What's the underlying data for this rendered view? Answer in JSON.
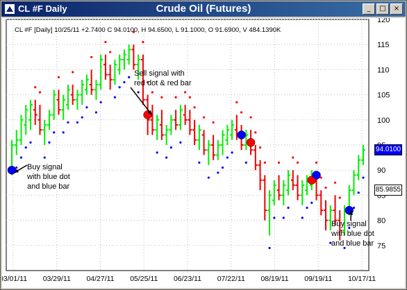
{
  "window": {
    "symbol_title": "CL #F Daily",
    "chart_title": "Crude Oil (Futures)",
    "controls": [
      "_",
      "□",
      "×"
    ]
  },
  "readout": "CL #F [Daily] 10/25/11  +2.7400  C 94.0100, H 94.6500, L 91.1000, O 91.6900, V 484.1390K",
  "price_tags": {
    "last": "94.0100",
    "last_bg": "#0000ff",
    "marker": "85.9855",
    "marker_bg": "#ffffff"
  },
  "annotations": [
    {
      "id": "sell",
      "lines": [
        "Sell signal with",
        "red dot & red bar"
      ]
    },
    {
      "id": "buy1",
      "lines": [
        "Buy signal",
        "with blue dot",
        "and blue bar"
      ]
    },
    {
      "id": "buy2",
      "lines": [
        "Buy signal",
        "with blue dot",
        "and blue bar"
      ]
    }
  ],
  "colors": {
    "bull": "#00ee00",
    "bear": "#ee0000",
    "buy": "#0000ff",
    "sell": "#ff0000"
  },
  "chart_data": {
    "type": "bar",
    "title": "Crude Oil (Futures)",
    "ylim": [
      70,
      120
    ],
    "y_ticks": [
      75,
      80,
      85,
      90,
      95,
      100,
      105,
      110,
      115,
      120
    ],
    "x_ticks": [
      "03/01/11",
      "03/29/11",
      "04/27/11",
      "05/25/11",
      "06/23/11",
      "07/22/11",
      "08/19/11",
      "09/19/11",
      "10/17/11"
    ],
    "grid": true,
    "ohlc": [
      [
        90,
        96,
        89,
        95
      ],
      [
        95,
        98,
        93,
        96
      ],
      [
        96,
        101,
        95,
        100
      ],
      [
        99,
        103,
        97,
        102
      ],
      [
        100,
        104,
        98,
        103
      ],
      [
        102,
        104,
        99,
        101
      ],
      [
        100,
        103,
        97,
        98
      ],
      [
        98,
        100,
        95,
        99
      ],
      [
        99,
        102,
        98,
        101
      ],
      [
        101,
        106,
        100,
        105
      ],
      [
        104,
        106,
        101,
        102
      ],
      [
        102,
        105,
        100,
        104
      ],
      [
        103,
        107,
        102,
        106
      ],
      [
        105,
        107,
        103,
        104
      ],
      [
        104,
        106,
        102,
        105
      ],
      [
        105,
        108,
        103,
        107
      ],
      [
        106,
        109,
        105,
        108
      ],
      [
        107,
        110,
        105,
        106
      ],
      [
        106,
        108,
        104,
        107
      ],
      [
        107,
        113,
        106,
        112
      ],
      [
        111,
        113,
        108,
        109
      ],
      [
        109,
        111,
        106,
        108
      ],
      [
        108,
        112,
        107,
        111
      ],
      [
        110,
        113,
        109,
        112
      ],
      [
        112,
        114,
        110,
        113
      ],
      [
        112,
        115,
        111,
        114
      ],
      [
        114,
        115,
        110,
        111
      ],
      [
        111,
        113,
        108,
        112
      ],
      [
        112,
        113,
        103,
        104
      ],
      [
        104,
        105,
        97,
        100
      ],
      [
        100,
        103,
        97,
        98
      ],
      [
        98,
        101,
        96,
        100
      ],
      [
        99,
        102,
        96,
        97
      ],
      [
        97,
        99,
        95,
        98
      ],
      [
        98,
        101,
        97,
        100
      ],
      [
        100,
        102,
        98,
        99
      ],
      [
        99,
        103,
        98,
        102
      ],
      [
        101,
        103,
        99,
        100
      ],
      [
        100,
        102,
        97,
        98
      ],
      [
        98,
        100,
        95,
        96
      ],
      [
        96,
        99,
        94,
        98
      ],
      [
        97,
        98,
        93,
        94
      ],
      [
        94,
        96,
        91,
        95
      ],
      [
        95,
        97,
        92,
        93
      ],
      [
        93,
        96,
        92,
        95
      ],
      [
        95,
        98,
        93,
        97
      ],
      [
        96,
        99,
        95,
        98
      ],
      [
        97,
        100,
        96,
        99
      ],
      [
        98,
        101,
        96,
        97
      ],
      [
        97,
        99,
        94,
        95
      ],
      [
        95,
        98,
        94,
        97
      ],
      [
        96,
        98,
        93,
        94
      ],
      [
        94,
        95,
        90,
        91
      ],
      [
        91,
        92,
        86,
        88
      ],
      [
        88,
        89,
        80,
        82
      ],
      [
        82,
        86,
        77,
        85
      ],
      [
        84,
        88,
        83,
        87
      ],
      [
        86,
        89,
        84,
        85
      ],
      [
        85,
        88,
        83,
        87
      ],
      [
        86,
        90,
        85,
        89
      ],
      [
        88,
        90,
        86,
        87
      ],
      [
        87,
        89,
        84,
        85
      ],
      [
        85,
        88,
        83,
        87
      ],
      [
        86,
        89,
        85,
        88
      ],
      [
        87,
        90,
        86,
        89
      ],
      [
        88,
        89,
        84,
        85
      ],
      [
        85,
        86,
        81,
        82
      ],
      [
        82,
        84,
        78,
        80
      ],
      [
        80,
        83,
        78,
        82
      ],
      [
        82,
        85,
        79,
        80
      ],
      [
        80,
        82,
        76,
        78
      ],
      [
        78,
        83,
        77,
        82
      ],
      [
        82,
        87,
        81,
        86
      ],
      [
        86,
        90,
        85,
        89
      ],
      [
        89,
        93,
        88,
        92
      ],
      [
        92,
        95,
        91,
        94
      ]
    ],
    "buy_signal_indices": [
      0,
      72
    ],
    "sell_signal_indices": [
      29,
      51,
      64
    ],
    "stop_markers": [
      {
        "i": 49,
        "price": 97
      },
      {
        "i": 65,
        "price": 89
      }
    ]
  }
}
